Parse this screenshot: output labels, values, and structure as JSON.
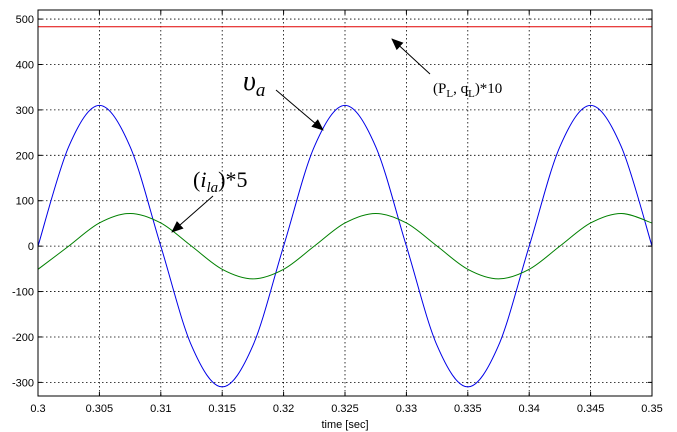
{
  "chart_data": {
    "type": "line",
    "title": "",
    "xlabel": "time [sec]",
    "ylabel": "",
    "xlim": [
      0.3,
      0.35
    ],
    "ylim": [
      -330,
      520
    ],
    "x_ticks": [
      "0.3",
      "0.305",
      "0.31",
      "0.315",
      "0.32",
      "0.325",
      "0.33",
      "0.335",
      "0.34",
      "0.345",
      "0.35"
    ],
    "y_ticks": [
      "500",
      "400",
      "300",
      "200",
      "100",
      "0",
      "-100",
      "-200",
      "-300"
    ],
    "grid": true,
    "colors": {
      "red": "#e00000",
      "blue": "#0000e8",
      "green": "#008000"
    },
    "series": [
      {
        "key": "pq",
        "color": "#e00000",
        "x": [
          0.3,
          0.35
        ],
        "values": [
          483,
          483
        ]
      },
      {
        "key": "va",
        "color": "#0000e8",
        "x": [
          0.3,
          0.3025,
          0.305,
          0.3075,
          0.31,
          0.3125,
          0.315,
          0.3175,
          0.32,
          0.3225,
          0.325,
          0.3275,
          0.33,
          0.3325,
          0.335,
          0.3375,
          0.34,
          0.3425,
          0.345,
          0.3475,
          0.35
        ],
        "values": [
          0,
          219,
          310,
          219,
          0,
          -219,
          -310,
          -219,
          0,
          219,
          310,
          219,
          0,
          -219,
          -310,
          -219,
          0,
          219,
          310,
          219,
          0
        ]
      },
      {
        "key": "ila",
        "color": "#008000",
        "x": [
          0.3,
          0.3025,
          0.305,
          0.3075,
          0.31,
          0.3125,
          0.315,
          0.3175,
          0.32,
          0.3225,
          0.325,
          0.3275,
          0.33,
          0.3325,
          0.335,
          0.3375,
          0.34,
          0.3425,
          0.345,
          0.3475,
          0.35
        ],
        "values": [
          -51,
          0,
          51,
          72,
          51,
          0,
          -51,
          -72,
          -51,
          0,
          51,
          72,
          51,
          0,
          -51,
          -72,
          -51,
          0,
          51,
          72,
          51
        ]
      }
    ],
    "annotations": [
      {
        "key": "pq",
        "text": "(P_L, q_L)*10",
        "parts": [
          "(P",
          "L",
          ", q",
          "L",
          ")*10"
        ]
      },
      {
        "key": "va",
        "text": "υ_a",
        "main": "υ",
        "sub": "a"
      },
      {
        "key": "ila",
        "text": "(i_la)*5",
        "open": "(",
        "main": "i",
        "sub": "la",
        "close": ")*5"
      }
    ]
  }
}
